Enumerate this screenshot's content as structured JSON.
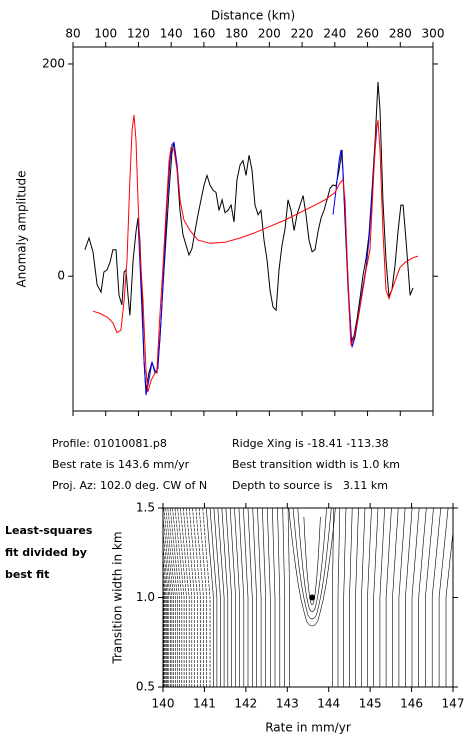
{
  "chart_data": [
    {
      "type": "line",
      "x_label": "Distance (km)",
      "y_label": "Anomaly amplitude",
      "xlim": [
        80,
        300
      ],
      "ylim": [
        -127,
        216
      ],
      "xticks": [
        80,
        100,
        120,
        140,
        160,
        180,
        200,
        220,
        240,
        260,
        280,
        300
      ],
      "yticks": [
        0,
        200
      ],
      "series": [
        {
          "color": "#000000",
          "x": [
            87.3,
            89.8,
            92.2,
            94.7,
            97.1,
            98.9,
            100.8,
            102.6,
            104.4,
            106.3,
            108.1,
            109.9,
            111.2,
            112.4,
            113.6,
            114.8,
            116.7,
            118.5,
            119.7,
            120.9,
            122.2,
            123.4,
            124.6,
            126.4,
            128.3,
            130.1,
            131.3,
            133.1,
            134.9,
            136.8,
            138.7,
            140.5,
            141.7,
            143.6,
            145.4,
            147.2,
            149.1,
            150.9,
            152.7,
            154.6,
            156.4,
            158.2,
            160.1,
            161.9,
            163.7,
            165.6,
            167.4,
            169.2,
            171.1,
            172.9,
            174.7,
            176.6,
            178.4,
            180.2,
            182.1,
            183.9,
            185.7,
            187.6,
            189.4,
            191.2,
            193.1,
            194.9,
            196.7,
            198.6,
            200.4,
            202.2,
            204.1,
            205.9,
            207.7,
            209.6,
            211.4,
            213.2,
            215.1,
            216.9,
            218.7,
            220.6,
            222.4,
            224.2,
            226.1,
            227.9,
            229.7,
            231.6,
            233.4,
            235.2,
            237.1,
            238.9,
            240.7,
            242.6,
            244.4,
            246.2,
            248.1,
            249.9,
            251.7,
            253.6,
            255.4,
            257.2,
            259.1,
            260.9,
            262.7,
            264.6,
            266.4,
            267.6,
            269.4,
            271.3,
            273.1,
            274.9,
            276.8,
            278.6,
            280.4,
            281.7,
            283.5,
            286,
            287.8
          ],
          "values": [
            25,
            36,
            23,
            -8,
            -15,
            4,
            6,
            13,
            25,
            25,
            -18,
            -27,
            4,
            6,
            -18,
            -37,
            15,
            42,
            55,
            34,
            -23,
            -79,
            -108,
            -91,
            -81,
            -89,
            -91,
            -60,
            -13,
            34,
            81,
            117,
            126,
            100,
            62,
            39,
            29,
            20,
            26,
            43,
            58,
            72,
            86,
            95,
            86,
            81,
            79,
            62,
            72,
            60,
            62,
            67,
            51,
            91,
            105,
            109,
            95,
            114,
            100,
            67,
            58,
            62,
            34,
            15,
            -13,
            -29,
            -32,
            6,
            29,
            45,
            72,
            62,
            43,
            58,
            67,
            76,
            58,
            34,
            23,
            25,
            42,
            55,
            62,
            72,
            83,
            86,
            85,
            100,
            119,
            53,
            -13,
            -62,
            -56,
            -40,
            -21,
            1,
            17,
            39,
            81,
            128,
            183,
            157,
            72,
            15,
            -19,
            -13,
            10,
            42,
            67,
            67,
            34,
            -18,
            -11
          ]
        },
        {
          "color": "#0000ff",
          "x": [
            119.7,
            121.6,
            123.4,
            124.6,
            126.4,
            128.3,
            130.1,
            131.9,
            133.8,
            135.6,
            137.4,
            139.3,
            140.5,
            141.7,
            143.6,
            145.4,
            200,
            238.9,
            240.7,
            242.6,
            243.8,
            245,
            246.8,
            248.7,
            250.5,
            252.3,
            254.2,
            256.6,
            259.1,
            260.9,
            262.7,
            264.6,
            265.8
          ],
          "values": [
            53,
            -13,
            -79,
            -112,
            -98,
            -81,
            -91,
            -87,
            -42,
            10,
            67,
            109,
            124,
            126,
            105,
            72,
            null,
            58,
            81,
            109,
            119,
            100,
            39,
            -23,
            -67,
            -58,
            -40,
            -15,
            8,
            34,
            76,
            119,
            142
          ]
        },
        {
          "color": "#ff0000",
          "x": [
            92.2,
            96.5,
            101.4,
            104.4,
            106.9,
            109.3,
            111.2,
            113,
            114.8,
            116.1,
            117.3,
            118.5,
            119.7,
            120.9,
            122.8,
            124.6,
            125.8,
            127.7,
            129.5,
            131.3,
            133.1,
            134.9,
            136.8,
            138.7,
            139.9,
            141.7,
            143.6,
            145.4,
            147.8,
            151.5,
            156.4,
            163.7,
            172.9,
            182.1,
            191.2,
            200.4,
            209.6,
            218.7,
            227.9,
            234.1,
            240.1,
            243.2,
            245,
            246.2,
            248.1,
            249.9,
            251.7,
            254.2,
            256.6,
            259.1,
            261.5,
            263.9,
            265.2,
            266.4,
            267.6,
            269.4,
            271.3,
            273.1,
            274.9,
            277.4,
            279.8,
            282.9,
            287.2,
            290.8
          ],
          "values": [
            -33,
            -35,
            -39,
            -44,
            -53,
            -51,
            -23,
            15,
            91,
            138,
            152,
            128,
            72,
            25,
            -23,
            -89,
            -109,
            -98,
            -93,
            -89,
            -37,
            6,
            58,
            109,
            121,
            119,
            100,
            72,
            53,
            43,
            34,
            31,
            32,
            36,
            41,
            47,
            53,
            60,
            67,
            72,
            79,
            88,
            91,
            72,
            -8,
            -65,
            -58,
            -40,
            -18,
            6,
            25,
            100,
            138,
            147,
            119,
            43,
            -13,
            -21,
            -13,
            -2,
            8,
            13,
            17,
            19
          ]
        }
      ]
    },
    {
      "type": "contour",
      "x_label": "Rate in mm/yr",
      "y_label": "Transition width in km",
      "xlim": [
        140,
        147
      ],
      "ylim": [
        0.5,
        1.5
      ],
      "xticks": [
        140,
        141,
        142,
        143,
        144,
        145,
        146,
        147
      ],
      "yticks": [
        {
          "value": 0.5,
          "label": "0.5"
        },
        {
          "value": 1,
          "label": "1.0"
        },
        {
          "value": 1.5,
          "label": "1.5"
        }
      ],
      "best_fit": {
        "x": 143.6,
        "y": 1
      }
    }
  ],
  "info": {
    "rows": [
      [
        "Profile: 01010081.p8",
        "Ridge Xing is -18.41 -113.38"
      ],
      [
        "Best rate is 143.6 mm/yr",
        "Best transition width is 1.0 km"
      ],
      [
        "Proj. Az: 102.0 deg. CW of N",
        "Depth to source is   3.11 km"
      ]
    ]
  },
  "note": [
    "Least-squares",
    "fit divided by",
    "best fit"
  ]
}
